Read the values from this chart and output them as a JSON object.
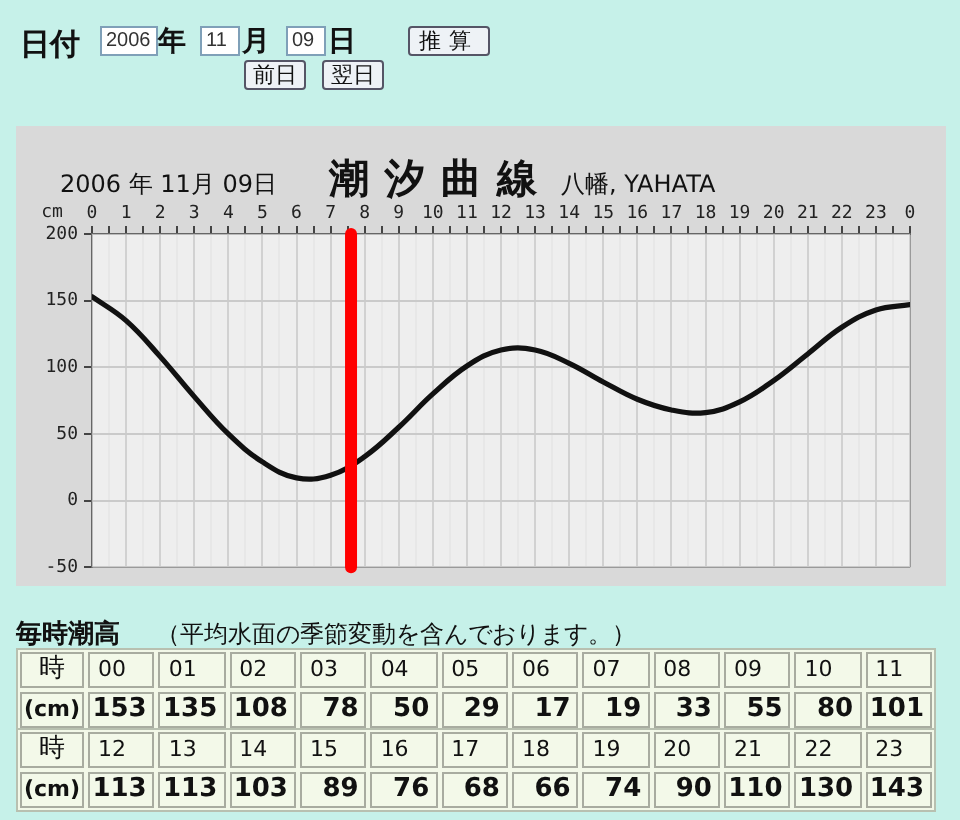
{
  "chart_data": [
    {
      "type": "line",
      "title": "潮汐曲線",
      "subtitle": "2006 年 11月 09日",
      "ylabel": "cm",
      "x": [
        "2006-11-09T00:00",
        "2006-11-09T01:00",
        "2006-11-09T02:00",
        "2006-11-09T03:00",
        "2006-11-09T04:00",
        "2006-11-09T05:00",
        "2006-11-09T06:00",
        "2006-11-09T07:00",
        "2006-11-09T08:00",
        "2006-11-09T09:00",
        "2006-11-09T10:00",
        "2006-11-09T11:00",
        "2006-11-09T12:00",
        "2006-11-09T13:00",
        "2006-11-09T14:00",
        "2006-11-09T15:00",
        "2006-11-09T16:00",
        "2006-11-09T17:00",
        "2006-11-09T18:00",
        "2006-11-09T19:00",
        "2006-11-09T20:00",
        "2006-11-09T21:00",
        "2006-11-09T22:00",
        "2006-11-09T23:00",
        "2006-11-10T00:00"
      ],
      "values": [
        153,
        135,
        108,
        78,
        50,
        29,
        17,
        19,
        33,
        55,
        80,
        101,
        113,
        113,
        103,
        89,
        76,
        68,
        66,
        74,
        90,
        110,
        130,
        143,
        147
      ],
      "color": "#111111",
      "xlim": [
        "2006-11-09T00:00",
        "2006-11-10T00:00"
      ],
      "xticks": [
        {
          "value": "2006-11-09T00:00",
          "label": "0"
        },
        {
          "value": "2006-11-09T00:30",
          "label": null
        },
        {
          "value": "2006-11-09T01:00",
          "label": "1"
        },
        {
          "value": "2006-11-09T01:30",
          "label": null
        },
        {
          "value": "2006-11-09T02:00",
          "label": "2"
        },
        {
          "value": "2006-11-09T02:30",
          "label": null
        },
        {
          "value": "2006-11-09T03:00",
          "label": "3"
        },
        {
          "value": "2006-11-09T03:30",
          "label": null
        },
        {
          "value": "2006-11-09T04:00",
          "label": "4"
        },
        {
          "value": "2006-11-09T04:30",
          "label": null
        },
        {
          "value": "2006-11-09T05:00",
          "label": "5"
        },
        {
          "value": "2006-11-09T05:30",
          "label": null
        },
        {
          "value": "2006-11-09T06:00",
          "label": "6"
        },
        {
          "value": "2006-11-09T06:30",
          "label": null
        },
        {
          "value": "2006-11-09T07:00",
          "label": "7"
        },
        {
          "value": "2006-11-09T07:30",
          "label": null
        },
        {
          "value": "2006-11-09T08:00",
          "label": "8"
        },
        {
          "value": "2006-11-09T08:30",
          "label": null
        },
        {
          "value": "2006-11-09T09:00",
          "label": "9"
        },
        {
          "value": "2006-11-09T09:30",
          "label": null
        },
        {
          "value": "2006-11-09T10:00",
          "label": "10"
        },
        {
          "value": "2006-11-09T10:30",
          "label": null
        },
        {
          "value": "2006-11-09T11:00",
          "label": "11"
        },
        {
          "value": "2006-11-09T11:30",
          "label": null
        },
        {
          "value": "2006-11-09T12:00",
          "label": "12"
        },
        {
          "value": "2006-11-09T12:30",
          "label": null
        },
        {
          "value": "2006-11-09T13:00",
          "label": "13"
        },
        {
          "value": "2006-11-09T13:30",
          "label": null
        },
        {
          "value": "2006-11-09T14:00",
          "label": "14"
        },
        {
          "value": "2006-11-09T14:30",
          "label": null
        },
        {
          "value": "2006-11-09T15:00",
          "label": "15"
        },
        {
          "value": "2006-11-09T15:30",
          "label": null
        },
        {
          "value": "2006-11-09T16:00",
          "label": "16"
        },
        {
          "value": "2006-11-09T16:30",
          "label": null
        },
        {
          "value": "2006-11-09T17:00",
          "label": "17"
        },
        {
          "value": "2006-11-09T17:30",
          "label": null
        },
        {
          "value": "2006-11-09T18:00",
          "label": "18"
        },
        {
          "value": "2006-11-09T18:30",
          "label": null
        },
        {
          "value": "2006-11-09T19:00",
          "label": "19"
        },
        {
          "value": "2006-11-09T19:30",
          "label": null
        },
        {
          "value": "2006-11-09T20:00",
          "label": "20"
        },
        {
          "value": "2006-11-09T20:30",
          "label": null
        },
        {
          "value": "2006-11-09T21:00",
          "label": "21"
        },
        {
          "value": "2006-11-09T21:30",
          "label": null
        },
        {
          "value": "2006-11-09T22:00",
          "label": "22"
        },
        {
          "value": "2006-11-09T22:30",
          "label": null
        },
        {
          "value": "2006-11-09T23:00",
          "label": "23"
        },
        {
          "value": "2006-11-09T23:30",
          "label": null
        },
        {
          "value": "2006-11-10T00:00",
          "label": "0"
        }
      ],
      "ylim": [
        -50,
        200
      ],
      "yticks": [
        -50,
        0,
        50,
        100,
        150,
        200
      ],
      "ref_lines": [
        {
          "axis": "x",
          "value": "2006-11-09T07:36",
          "color": "#ff0000"
        }
      ],
      "grid": true,
      "legend": false,
      "marker": "none",
      "line_style": "solid",
      "annotations": [
        "日付",
        "2006",
        "年",
        "11",
        "月",
        "09",
        "日",
        "推算",
        "前日",
        "翌日",
        "八幡, YAHATA"
      ]
    },
    {
      "type": "heatmap",
      "title": "毎時潮高",
      "subtitle": "（平均水面の季節変動を含んでおります。）",
      "xlabel": "時",
      "categories": [
        "00",
        "01",
        "02",
        "03",
        "04",
        "05",
        "06",
        "07",
        "08",
        "09",
        "10",
        "11"
      ],
      "y_categories": [
        "(cm)"
      ],
      "cells": [
        [
          153,
          135,
          108,
          78,
          50,
          29,
          17,
          19,
          33,
          55,
          80,
          101
        ]
      ],
      "data_labels": true
    },
    {
      "type": "heatmap",
      "xlabel": "時",
      "categories": [
        "12",
        "13",
        "14",
        "15",
        "16",
        "17",
        "18",
        "19",
        "20",
        "21",
        "22",
        "23"
      ],
      "y_categories": [
        "(cm)"
      ],
      "cells": [
        [
          113,
          113,
          103,
          89,
          76,
          68,
          66,
          74,
          90,
          110,
          130,
          143
        ]
      ],
      "data_labels": true
    }
  ]
}
